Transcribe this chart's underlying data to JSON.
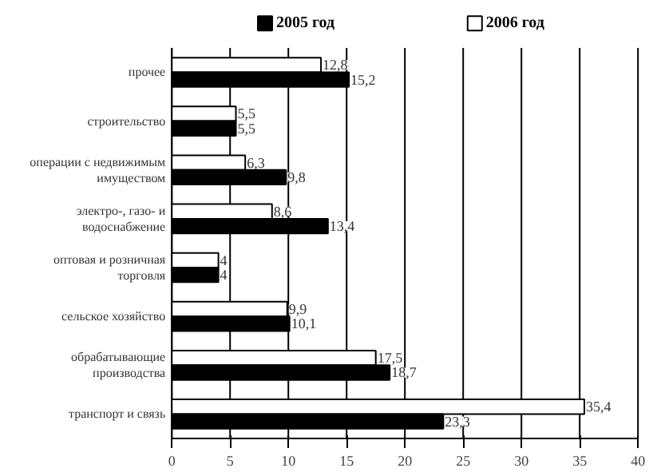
{
  "chart_data": {
    "type": "bar",
    "orientation": "horizontal",
    "categories": [
      "прочее",
      "строительство",
      "операции с недвижимым\nимуществом",
      "электро-, газо- и\nводоснабжение",
      "оптовая и розничная\nторговля",
      "сельское хозяйство",
      "обрабатывающие\nпроизводства",
      "транспорт и связь"
    ],
    "series": [
      {
        "name": "2006 год",
        "color": "#ffffff",
        "values": [
          12.8,
          5.5,
          6.3,
          8.6,
          4,
          9.9,
          17.5,
          35.4
        ],
        "value_labels": [
          "12,8",
          "5,5",
          "6,3",
          "8,6",
          "4",
          "9,9",
          "17,5",
          "35,4"
        ]
      },
      {
        "name": "2005 год",
        "color": "#000000",
        "values": [
          15.2,
          5.5,
          9.8,
          13.4,
          4,
          10.1,
          18.7,
          23.3
        ],
        "value_labels": [
          "15,2",
          "5,5",
          "9,8",
          "13,4",
          "4",
          "10,1",
          "18,7",
          "23,3"
        ]
      }
    ],
    "xlim": [
      0,
      40
    ],
    "xticks": [
      0,
      5,
      10,
      15,
      20,
      25,
      30,
      35,
      40
    ],
    "grid": "x",
    "legend": "top"
  }
}
